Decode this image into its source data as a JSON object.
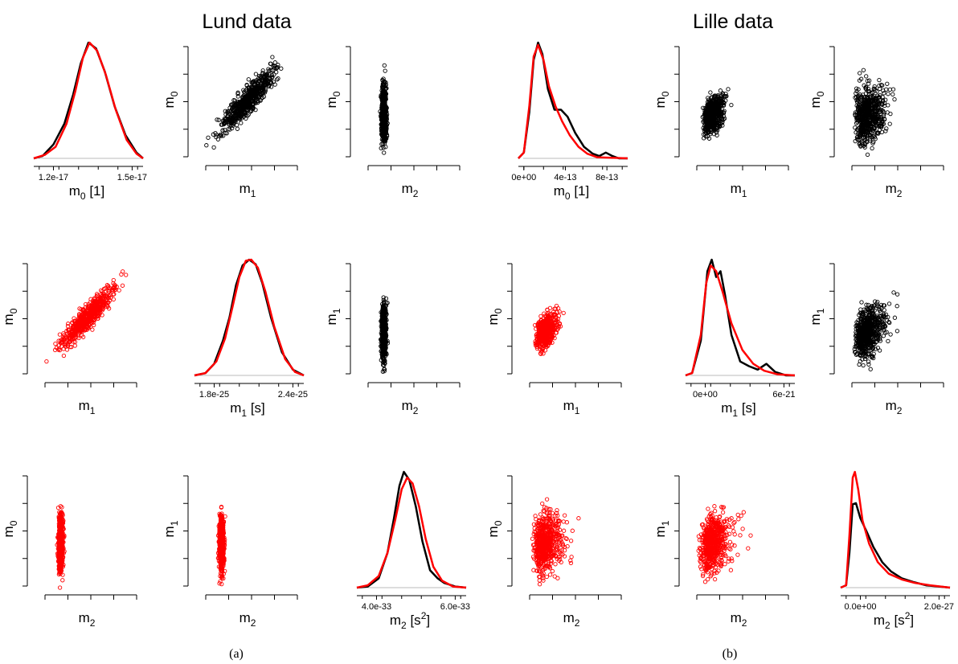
{
  "panel_titles": [
    "Lund data",
    "Lille data"
  ],
  "captions": [
    "(a)",
    "(b)"
  ],
  "colors": {
    "data": "#000000",
    "model": "#ff0000",
    "baseline": "#bbbbbb"
  },
  "chart_data": [
    {
      "id": "lund-d0",
      "type": "line",
      "xlabel": "m_0 [1]",
      "xticks": [
        "1.2e-17",
        "1.5e-17"
      ],
      "series": [
        {
          "color": "#000000",
          "points": [
            [
              0,
              0
            ],
            [
              0.08,
              0.02
            ],
            [
              0.18,
              0.12
            ],
            [
              0.28,
              0.3
            ],
            [
              0.36,
              0.55
            ],
            [
              0.43,
              0.82
            ],
            [
              0.5,
              1.0
            ],
            [
              0.57,
              0.95
            ],
            [
              0.65,
              0.75
            ],
            [
              0.74,
              0.45
            ],
            [
              0.84,
              0.2
            ],
            [
              0.94,
              0.05
            ],
            [
              1,
              0
            ]
          ]
        },
        {
          "color": "#ff0000",
          "points": [
            [
              0,
              0
            ],
            [
              0.1,
              0.03
            ],
            [
              0.2,
              0.1
            ],
            [
              0.3,
              0.3
            ],
            [
              0.38,
              0.58
            ],
            [
              0.45,
              0.87
            ],
            [
              0.51,
              1.0
            ],
            [
              0.58,
              0.93
            ],
            [
              0.66,
              0.72
            ],
            [
              0.75,
              0.42
            ],
            [
              0.85,
              0.16
            ],
            [
              0.94,
              0.04
            ],
            [
              1,
              0
            ]
          ]
        }
      ]
    },
    {
      "id": "lund-s01",
      "type": "scatter",
      "xlabel": "m_1",
      "ylabel": "m_0",
      "color": "#000000",
      "n": 620,
      "corr": 0.9,
      "skew": 0
    },
    {
      "id": "lund-s02",
      "type": "scatter",
      "xlabel": "m_2",
      "ylabel": "m_0",
      "color": "#000000",
      "n": 620,
      "corr": 0.28,
      "skew": 0.2
    },
    {
      "id": "lille-d0",
      "type": "line",
      "xlabel": "m_0 [1]",
      "xticks": [
        "0e+00",
        "4e-13",
        "8e-13"
      ],
      "series": [
        {
          "color": "#000000",
          "points": [
            [
              0,
              0
            ],
            [
              0.05,
              0.05
            ],
            [
              0.1,
              0.4
            ],
            [
              0.14,
              0.85
            ],
            [
              0.18,
              1.0
            ],
            [
              0.22,
              0.9
            ],
            [
              0.27,
              0.6
            ],
            [
              0.33,
              0.42
            ],
            [
              0.39,
              0.42
            ],
            [
              0.45,
              0.36
            ],
            [
              0.52,
              0.22
            ],
            [
              0.6,
              0.1
            ],
            [
              0.68,
              0.04
            ],
            [
              0.74,
              0.02
            ],
            [
              0.8,
              0.05
            ],
            [
              0.86,
              0.02
            ],
            [
              0.92,
              0.0
            ],
            [
              1,
              0
            ]
          ]
        },
        {
          "color": "#ff0000",
          "points": [
            [
              0,
              0
            ],
            [
              0.05,
              0.05
            ],
            [
              0.1,
              0.45
            ],
            [
              0.14,
              0.88
            ],
            [
              0.18,
              0.98
            ],
            [
              0.23,
              0.85
            ],
            [
              0.28,
              0.62
            ],
            [
              0.34,
              0.45
            ],
            [
              0.4,
              0.32
            ],
            [
              0.47,
              0.2
            ],
            [
              0.55,
              0.1
            ],
            [
              0.63,
              0.04
            ],
            [
              0.72,
              0.01
            ],
            [
              1,
              0
            ]
          ]
        }
      ]
    },
    {
      "id": "lille-s01",
      "type": "scatter",
      "xlabel": "m_1",
      "ylabel": "m_0",
      "color": "#000000",
      "n": 620,
      "corr": 0.82,
      "skew": 0.8
    },
    {
      "id": "lille-s02",
      "type": "scatter",
      "xlabel": "m_2",
      "ylabel": "m_0",
      "color": "#000000",
      "n": 620,
      "corr": 0.3,
      "skew": 1.2
    },
    {
      "id": "lund-s10",
      "type": "scatter",
      "xlabel": "m_1",
      "ylabel": "m_0",
      "color": "#ff0000",
      "n": 620,
      "corr": 0.92,
      "skew": 0
    },
    {
      "id": "lund-d1",
      "type": "line",
      "xlabel": "m_1 [s]",
      "xticks": [
        "1.8e-25",
        "2.4e-25"
      ],
      "series": [
        {
          "color": "#000000",
          "points": [
            [
              0,
              0
            ],
            [
              0.1,
              0.02
            ],
            [
              0.18,
              0.1
            ],
            [
              0.26,
              0.3
            ],
            [
              0.32,
              0.5
            ],
            [
              0.38,
              0.78
            ],
            [
              0.44,
              0.95
            ],
            [
              0.5,
              1.0
            ],
            [
              0.56,
              0.96
            ],
            [
              0.62,
              0.8
            ],
            [
              0.7,
              0.5
            ],
            [
              0.8,
              0.2
            ],
            [
              0.9,
              0.05
            ],
            [
              1,
              0
            ]
          ]
        },
        {
          "color": "#ff0000",
          "points": [
            [
              0,
              0
            ],
            [
              0.1,
              0.02
            ],
            [
              0.2,
              0.12
            ],
            [
              0.28,
              0.32
            ],
            [
              0.35,
              0.6
            ],
            [
              0.41,
              0.85
            ],
            [
              0.47,
              0.99
            ],
            [
              0.52,
              1.0
            ],
            [
              0.58,
              0.93
            ],
            [
              0.65,
              0.72
            ],
            [
              0.73,
              0.42
            ],
            [
              0.83,
              0.14
            ],
            [
              0.92,
              0.03
            ],
            [
              1,
              0
            ]
          ]
        }
      ]
    },
    {
      "id": "lund-s12",
      "type": "scatter",
      "xlabel": "m_2",
      "ylabel": "m_1",
      "color": "#000000",
      "n": 620,
      "corr": 0.42,
      "skew": 0.2
    },
    {
      "id": "lille-s10",
      "type": "scatter",
      "xlabel": "m_1",
      "ylabel": "m_0",
      "color": "#ff0000",
      "n": 620,
      "corr": 0.85,
      "skew": 0.8
    },
    {
      "id": "lille-d1",
      "type": "line",
      "xlabel": "m_1 [s]",
      "xticks": [
        "0e+00",
        "6e-21"
      ],
      "series": [
        {
          "color": "#000000",
          "points": [
            [
              0,
              0
            ],
            [
              0.06,
              0.02
            ],
            [
              0.14,
              0.3
            ],
            [
              0.2,
              0.9
            ],
            [
              0.24,
              1.0
            ],
            [
              0.28,
              0.85
            ],
            [
              0.32,
              0.9
            ],
            [
              0.36,
              0.7
            ],
            [
              0.42,
              0.35
            ],
            [
              0.5,
              0.12
            ],
            [
              0.58,
              0.08
            ],
            [
              0.66,
              0.05
            ],
            [
              0.74,
              0.1
            ],
            [
              0.82,
              0.03
            ],
            [
              0.92,
              0.0
            ],
            [
              1,
              0
            ]
          ]
        },
        {
          "color": "#ff0000",
          "points": [
            [
              0,
              0
            ],
            [
              0.06,
              0.02
            ],
            [
              0.14,
              0.35
            ],
            [
              0.19,
              0.8
            ],
            [
              0.23,
              0.95
            ],
            [
              0.28,
              0.9
            ],
            [
              0.34,
              0.72
            ],
            [
              0.42,
              0.45
            ],
            [
              0.52,
              0.22
            ],
            [
              0.62,
              0.1
            ],
            [
              0.72,
              0.04
            ],
            [
              0.84,
              0.01
            ],
            [
              1,
              0
            ]
          ]
        }
      ]
    },
    {
      "id": "lille-s12",
      "type": "scatter",
      "xlabel": "m_2",
      "ylabel": "m_1",
      "color": "#000000",
      "n": 620,
      "corr": 0.55,
      "skew": 1.2
    },
    {
      "id": "lund-s20",
      "type": "scatter",
      "xlabel": "m_2",
      "ylabel": "m_0",
      "color": "#ff0000",
      "n": 620,
      "corr": 0.28,
      "skew": 0.2
    },
    {
      "id": "lund-s21",
      "type": "scatter",
      "xlabel": "m_2",
      "ylabel": "m_1",
      "color": "#ff0000",
      "n": 620,
      "corr": 0.42,
      "skew": 0.2
    },
    {
      "id": "lund-d2",
      "type": "line",
      "xlabel": "m_2 [s^2]",
      "xticks": [
        "4.0e-33",
        "6.0e-33"
      ],
      "series": [
        {
          "color": "#000000",
          "points": [
            [
              0,
              0
            ],
            [
              0.1,
              0.01
            ],
            [
              0.2,
              0.08
            ],
            [
              0.28,
              0.3
            ],
            [
              0.34,
              0.6
            ],
            [
              0.39,
              0.88
            ],
            [
              0.43,
              1.0
            ],
            [
              0.48,
              0.93
            ],
            [
              0.54,
              0.7
            ],
            [
              0.6,
              0.4
            ],
            [
              0.67,
              0.15
            ],
            [
              0.74,
              0.08
            ],
            [
              0.8,
              0.04
            ],
            [
              0.9,
              0.01
            ],
            [
              1,
              0
            ]
          ]
        },
        {
          "color": "#ff0000",
          "points": [
            [
              0,
              0
            ],
            [
              0.1,
              0.02
            ],
            [
              0.2,
              0.1
            ],
            [
              0.28,
              0.3
            ],
            [
              0.35,
              0.58
            ],
            [
              0.41,
              0.85
            ],
            [
              0.46,
              0.95
            ],
            [
              0.51,
              0.9
            ],
            [
              0.57,
              0.7
            ],
            [
              0.63,
              0.42
            ],
            [
              0.7,
              0.18
            ],
            [
              0.78,
              0.06
            ],
            [
              0.88,
              0.01
            ],
            [
              1,
              0
            ]
          ]
        }
      ]
    },
    {
      "id": "lille-s20",
      "type": "scatter",
      "xlabel": "m_2",
      "ylabel": "m_0",
      "color": "#ff0000",
      "n": 620,
      "corr": 0.3,
      "skew": 1.2
    },
    {
      "id": "lille-s21",
      "type": "scatter",
      "xlabel": "m_2",
      "ylabel": "m_1",
      "color": "#ff0000",
      "n": 620,
      "corr": 0.45,
      "skew": 1.2
    },
    {
      "id": "lille-d2",
      "type": "line",
      "xlabel": "m_2 [s^2]",
      "xticks": [
        "0.0e+00",
        "2.0e-27"
      ],
      "series": [
        {
          "color": "#000000",
          "points": [
            [
              0,
              0
            ],
            [
              0.05,
              0.02
            ],
            [
              0.08,
              0.3
            ],
            [
              0.11,
              0.72
            ],
            [
              0.14,
              0.73
            ],
            [
              0.18,
              0.6
            ],
            [
              0.24,
              0.48
            ],
            [
              0.3,
              0.35
            ],
            [
              0.38,
              0.22
            ],
            [
              0.46,
              0.14
            ],
            [
              0.56,
              0.08
            ],
            [
              0.66,
              0.05
            ],
            [
              0.78,
              0.02
            ],
            [
              0.9,
              0.01
            ],
            [
              1,
              0
            ]
          ]
        },
        {
          "color": "#ff0000",
          "points": [
            [
              0,
              0
            ],
            [
              0.05,
              0.02
            ],
            [
              0.08,
              0.45
            ],
            [
              0.11,
              0.95
            ],
            [
              0.13,
              1.0
            ],
            [
              0.16,
              0.85
            ],
            [
              0.2,
              0.58
            ],
            [
              0.26,
              0.38
            ],
            [
              0.34,
              0.22
            ],
            [
              0.44,
              0.12
            ],
            [
              0.56,
              0.07
            ],
            [
              0.68,
              0.04
            ],
            [
              0.82,
              0.02
            ],
            [
              1,
              0
            ]
          ]
        }
      ]
    }
  ]
}
